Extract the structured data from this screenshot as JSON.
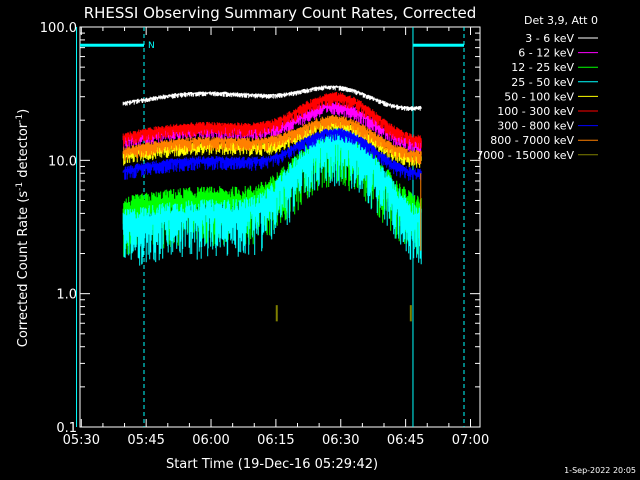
{
  "chart_data": {
    "type": "line",
    "title": "RHESSI Observing Summary Count Rates, Corrected",
    "xlabel": "Start Time (19-Dec-16 05:29:42)",
    "ylabel_main": "Corrected Count Rate (s",
    "ylabel_sup1": "-1",
    "ylabel_mid": " detector",
    "ylabel_sup2": "-1",
    "ylabel_end": ")",
    "yscale": "log",
    "ylim": [
      0.1,
      100.0
    ],
    "xlim_minutes": [
      0,
      92.5
    ],
    "x_ticks": [
      {
        "label": "05:30",
        "min": 0.3
      },
      {
        "label": "05:45",
        "min": 15.3
      },
      {
        "label": "06:00",
        "min": 30.3
      },
      {
        "label": "06:15",
        "min": 45.3
      },
      {
        "label": "06:30",
        "min": 60.3
      },
      {
        "label": "06:45",
        "min": 75.3
      },
      {
        "label": "07:00",
        "min": 90.3
      }
    ],
    "y_ticks": [
      {
        "label": "100.0",
        "v": 100
      },
      {
        "label": "10.0",
        "v": 10
      },
      {
        "label": "1.0",
        "v": 1
      },
      {
        "label": "0.1",
        "v": 0.1
      }
    ],
    "legend_title": "Det 3,9, Att 0",
    "series": [
      {
        "name": "3 - 6 keV",
        "color": "#ffffff",
        "base": 32,
        "peak": 44
      },
      {
        "name": "6 - 12 keV",
        "color": "#ff00ff",
        "base": 17,
        "peak": 30
      },
      {
        "name": "12 - 25 keV",
        "color": "#00ff00",
        "base": 5.0,
        "peak": 15
      },
      {
        "name": "25 - 50 keV",
        "color": "#00ffff",
        "base": 4.0,
        "peak": 15
      },
      {
        "name": "50 - 100 keV",
        "color": "#ffff00",
        "base": 13,
        "peak": 22
      },
      {
        "name": "100 - 300 keV",
        "color": "#ff0000",
        "base": 18,
        "peak": 35
      },
      {
        "name": "300 - 800 keV",
        "color": "#0000ff",
        "base": 10,
        "peak": 19
      },
      {
        "name": "800 - 7000 keV",
        "color": "#ff8000",
        "base": 14,
        "peak": 24
      },
      {
        "name": "7000 - 15000 keV",
        "color": "#808000",
        "base": 0.7,
        "peak": 0.7
      }
    ],
    "data_start_min": 10.0,
    "data_end_min": 79.0,
    "flare_peak_min": 59.5,
    "saa_marker": "N",
    "saa_bars_min": [
      [
        -0.8,
        14.8
      ],
      [
        77.0,
        88.8
      ]
    ],
    "dashed_lines_min": [
      14.8,
      88.8
    ],
    "solid_lines_min": [
      -0.8,
      77.0
    ]
  },
  "footer": {
    "date": "1-Sep-2022 20:05"
  }
}
